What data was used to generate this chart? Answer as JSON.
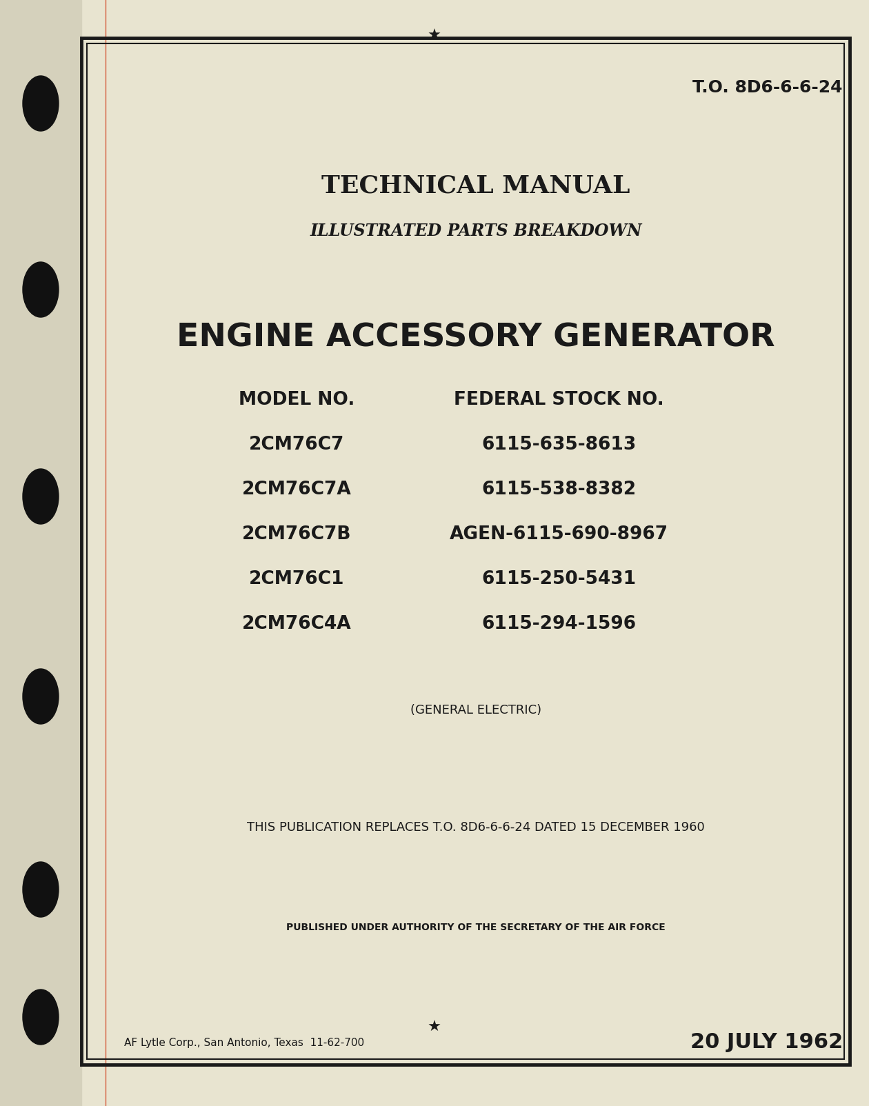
{
  "bg_color": "#e8e4d0",
  "border_color": "#1a1a1a",
  "text_color": "#1a1a1a",
  "to_number": "T.O. 8D6-6-6-24",
  "title1": "TECHNICAL MANUAL",
  "title2": "ILLUSTRATED PARTS BREAKDOWN",
  "title3": "ENGINE ACCESSORY GENERATOR",
  "col_header1": "MODEL NO.",
  "col_header2": "FEDERAL STOCK NO.",
  "models": [
    "2CM76C7",
    "2CM76C7A",
    "2CM76C7B",
    "2CM76C1",
    "2CM76C4A"
  ],
  "stocks": [
    "6115-635-8613",
    "6115-538-8382",
    "AGEN-6115-690-8967",
    "6115-250-5431",
    "6115-294-1596"
  ],
  "manufacturer": "(GENERAL ELECTRIC)",
  "replaces_text": "THIS PUBLICATION REPLACES T.O. 8D6-6-6-24 DATED 15 DECEMBER 1960",
  "authority_text": "PUBLISHED UNDER AUTHORITY OF THE SECRETARY OF THE AIR FORCE",
  "footer_left": "AF Lytle Corp., San Antonio, Texas  11-62-700",
  "footer_right": "20 JULY 1962",
  "hole_color": "#111111",
  "red_line_color": "#cc2200",
  "spine_color": "#d5d1bc"
}
